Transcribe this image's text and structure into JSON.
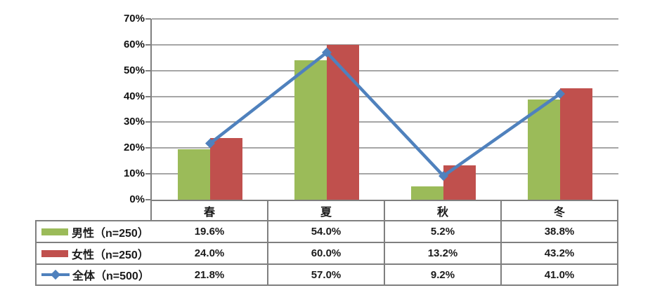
{
  "chart_data": {
    "type": "combo",
    "categories": [
      "春",
      "夏",
      "秋",
      "冬"
    ],
    "series": [
      {
        "name": "男性（n=250）",
        "type": "bar",
        "color": "#9bbb59",
        "values": [
          19.6,
          54.0,
          5.2,
          38.8
        ]
      },
      {
        "name": "女性（n=250）",
        "type": "bar",
        "color": "#c0504d",
        "values": [
          24.0,
          60.0,
          13.2,
          43.2
        ]
      },
      {
        "name": "全体（n=500）",
        "type": "line",
        "color": "#4f81bd",
        "marker": "diamond",
        "values": [
          21.8,
          57.0,
          9.2,
          41.0
        ]
      }
    ],
    "title": "",
    "xlabel": "",
    "ylabel": "",
    "ylim": [
      0,
      70
    ],
    "ytick_step": 10,
    "ytick_labels": [
      "0%",
      "10%",
      "20%",
      "30%",
      "40%",
      "50%",
      "60%",
      "70%"
    ],
    "grid": true,
    "legend_position": "table-left",
    "value_format": "percent-one-decimal"
  },
  "table": {
    "columns": [
      "春",
      "夏",
      "秋",
      "冬"
    ],
    "rows": [
      {
        "label": "男性（n=250）",
        "cells": [
          "19.6%",
          "54.0%",
          "5.2%",
          "38.8%"
        ]
      },
      {
        "label": "女性（n=250）",
        "cells": [
          "24.0%",
          "60.0%",
          "13.2%",
          "43.2%"
        ]
      },
      {
        "label": "全体（n=500）",
        "cells": [
          "21.8%",
          "57.0%",
          "9.2%",
          "41.0%"
        ]
      }
    ]
  },
  "colors": {
    "male_bar": "#9bbb59",
    "female_bar": "#c0504d",
    "total_line": "#4f81bd",
    "grid_line": "#a6a6a6",
    "table_border": "#7f7f7f",
    "text": "#1a1a1a",
    "background": "#ffffff"
  }
}
